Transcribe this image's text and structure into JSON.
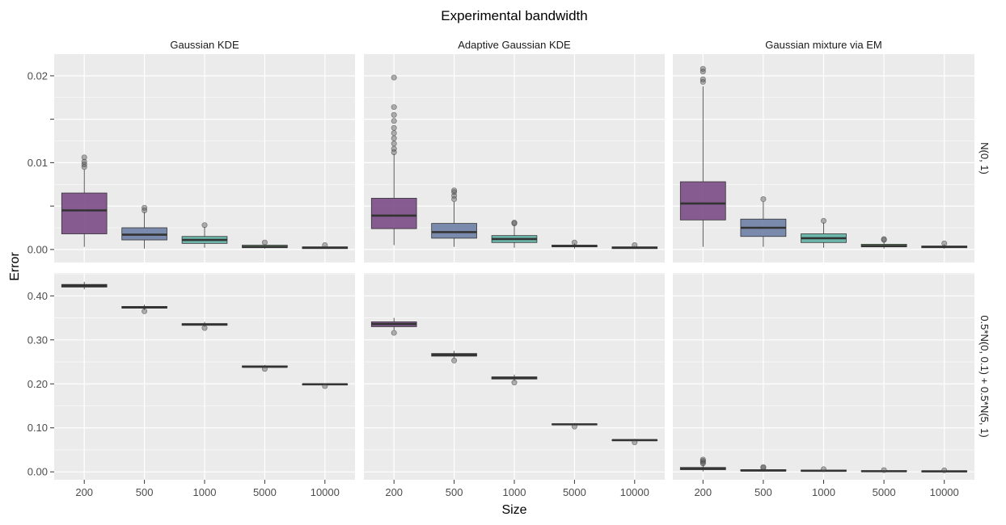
{
  "chart_data": {
    "type": "boxplot",
    "title": "Experimental bandwidth",
    "xlabel": "Size",
    "ylabel": "Error",
    "categories": [
      "200",
      "500",
      "1000",
      "5000",
      "10000"
    ],
    "columns": [
      "Gaussian KDE",
      "Adaptive Gaussian KDE",
      "Gaussian mixture via EM"
    ],
    "rows": [
      {
        "label": "N(0, 1)",
        "ylim": [
          -0.0015,
          0.0225
        ],
        "ticks": [
          0.0,
          0.005,
          0.01,
          0.015,
          0.02
        ],
        "tick_labels": [
          "0.00",
          "",
          "0.01",
          "",
          "0.02"
        ]
      },
      {
        "label": "0.5*N(0, 0.1) + 0.5*N(5, 1)",
        "ylim": [
          -0.018,
          0.452
        ],
        "ticks": [
          0.0,
          0.1,
          0.2,
          0.3,
          0.4
        ],
        "tick_labels": [
          "0.00",
          "0.10",
          "0.20",
          "0.30",
          "0.40"
        ]
      }
    ],
    "box_colors": [
      "#7a4b86",
      "#6e7fa6",
      "#5fb2a6",
      "#7dbd7e",
      "#8aa96b"
    ],
    "panels": [
      {
        "row": 0,
        "col": 0,
        "boxes": [
          {
            "category": "200",
            "min": 0.0003,
            "q1": 0.0018,
            "median": 0.0045,
            "q3": 0.0065,
            "max": 0.0092,
            "outliers": [
              0.0095,
              0.0098,
              0.0101,
              0.0106
            ]
          },
          {
            "category": "500",
            "min": 0.0001,
            "q1": 0.0011,
            "median": 0.0017,
            "q3": 0.0025,
            "max": 0.0043,
            "outliers": [
              0.0045,
              0.0048
            ]
          },
          {
            "category": "1000",
            "min": 0.0002,
            "q1": 0.0007,
            "median": 0.0011,
            "q3": 0.0015,
            "max": 0.0026,
            "outliers": [
              0.0028
            ]
          },
          {
            "category": "5000",
            "min": 0.0001,
            "q1": 0.0002,
            "median": 0.0003,
            "q3": 0.0005,
            "max": 0.0006,
            "outliers": [
              0.0008
            ]
          },
          {
            "category": "10000",
            "min": 0.0001,
            "q1": 0.0001,
            "median": 0.0002,
            "q3": 0.0003,
            "max": 0.0004,
            "outliers": [
              0.0005
            ]
          }
        ]
      },
      {
        "row": 0,
        "col": 1,
        "boxes": [
          {
            "category": "200",
            "min": 0.0005,
            "q1": 0.0024,
            "median": 0.0039,
            "q3": 0.0059,
            "max": 0.011,
            "outliers": [
              0.0112,
              0.0116,
              0.0122,
              0.0128,
              0.0134,
              0.014,
              0.0148,
              0.0155,
              0.0164,
              0.0198
            ]
          },
          {
            "category": "500",
            "min": 0.0003,
            "q1": 0.0013,
            "median": 0.002,
            "q3": 0.003,
            "max": 0.0055,
            "outliers": [
              0.0058,
              0.0062,
              0.0066,
              0.0068
            ]
          },
          {
            "category": "1000",
            "min": 0.0002,
            "q1": 0.0008,
            "median": 0.0012,
            "q3": 0.0016,
            "max": 0.0028,
            "outliers": [
              0.003,
              0.0031
            ]
          },
          {
            "category": "5000",
            "min": 0.0001,
            "q1": 0.0003,
            "median": 0.0004,
            "q3": 0.0005,
            "max": 0.0007,
            "outliers": [
              0.0008
            ]
          },
          {
            "category": "10000",
            "min": 0.0001,
            "q1": 0.0001,
            "median": 0.0002,
            "q3": 0.0003,
            "max": 0.0004,
            "outliers": [
              0.0005
            ]
          }
        ]
      },
      {
        "row": 0,
        "col": 2,
        "boxes": [
          {
            "category": "200",
            "min": 0.0003,
            "q1": 0.0034,
            "median": 0.0053,
            "q3": 0.0078,
            "max": 0.0188,
            "outliers": [
              0.0193,
              0.0196,
              0.0205,
              0.0208
            ]
          },
          {
            "category": "500",
            "min": 0.0003,
            "q1": 0.0015,
            "median": 0.0025,
            "q3": 0.0035,
            "max": 0.0055,
            "outliers": [
              0.0058
            ]
          },
          {
            "category": "1000",
            "min": 0.0002,
            "q1": 0.0008,
            "median": 0.0013,
            "q3": 0.0018,
            "max": 0.0031,
            "outliers": [
              0.0033
            ]
          },
          {
            "category": "5000",
            "min": 0.0001,
            "q1": 0.0003,
            "median": 0.0004,
            "q3": 0.0006,
            "max": 0.0009,
            "outliers": [
              0.0011,
              0.0012
            ]
          },
          {
            "category": "10000",
            "min": 0.0001,
            "q1": 0.0002,
            "median": 0.0003,
            "q3": 0.0004,
            "max": 0.0006,
            "outliers": [
              0.0007
            ]
          }
        ]
      },
      {
        "row": 1,
        "col": 0,
        "boxes": [
          {
            "category": "200",
            "min": 0.415,
            "q1": 0.42,
            "median": 0.423,
            "q3": 0.426,
            "max": 0.432,
            "outliers": []
          },
          {
            "category": "500",
            "min": 0.368,
            "q1": 0.372,
            "median": 0.374,
            "q3": 0.376,
            "max": 0.38,
            "outliers": [
              0.365
            ]
          },
          {
            "category": "1000",
            "min": 0.33,
            "q1": 0.333,
            "median": 0.335,
            "q3": 0.337,
            "max": 0.341,
            "outliers": [
              0.327
            ]
          },
          {
            "category": "5000",
            "min": 0.236,
            "q1": 0.238,
            "median": 0.239,
            "q3": 0.241,
            "max": 0.243,
            "outliers": [
              0.234
            ]
          },
          {
            "category": "10000",
            "min": 0.197,
            "q1": 0.198,
            "median": 0.199,
            "q3": 0.2,
            "max": 0.201,
            "outliers": [
              0.195
            ]
          }
        ]
      },
      {
        "row": 1,
        "col": 1,
        "boxes": [
          {
            "category": "200",
            "min": 0.322,
            "q1": 0.33,
            "median": 0.336,
            "q3": 0.341,
            "max": 0.35,
            "outliers": [
              0.316
            ]
          },
          {
            "category": "500",
            "min": 0.258,
            "q1": 0.263,
            "median": 0.266,
            "q3": 0.269,
            "max": 0.275,
            "outliers": [
              0.253
            ]
          },
          {
            "category": "1000",
            "min": 0.207,
            "q1": 0.211,
            "median": 0.213,
            "q3": 0.216,
            "max": 0.221,
            "outliers": [
              0.203
            ]
          },
          {
            "category": "5000",
            "min": 0.105,
            "q1": 0.107,
            "median": 0.108,
            "q3": 0.109,
            "max": 0.111,
            "outliers": [
              0.103
            ]
          },
          {
            "category": "10000",
            "min": 0.07,
            "q1": 0.071,
            "median": 0.072,
            "q3": 0.073,
            "max": 0.075,
            "outliers": [
              0.067
            ]
          }
        ]
      },
      {
        "row": 1,
        "col": 2,
        "boxes": [
          {
            "category": "200",
            "min": 0.001,
            "q1": 0.005,
            "median": 0.007,
            "q3": 0.01,
            "max": 0.016,
            "outliers": [
              0.019,
              0.022,
              0.025,
              0.028
            ]
          },
          {
            "category": "500",
            "min": 0.0005,
            "q1": 0.002,
            "median": 0.003,
            "q3": 0.005,
            "max": 0.007,
            "outliers": [
              0.009,
              0.011
            ]
          },
          {
            "category": "1000",
            "min": 0.0005,
            "q1": 0.0015,
            "median": 0.0025,
            "q3": 0.004,
            "max": 0.005,
            "outliers": [
              0.006
            ]
          },
          {
            "category": "5000",
            "min": 0.0003,
            "q1": 0.001,
            "median": 0.0015,
            "q3": 0.0025,
            "max": 0.0035,
            "outliers": [
              0.004
            ]
          },
          {
            "category": "10000",
            "min": 0.0002,
            "q1": 0.0008,
            "median": 0.0012,
            "q3": 0.002,
            "max": 0.003,
            "outliers": [
              0.0035
            ]
          }
        ]
      }
    ]
  }
}
